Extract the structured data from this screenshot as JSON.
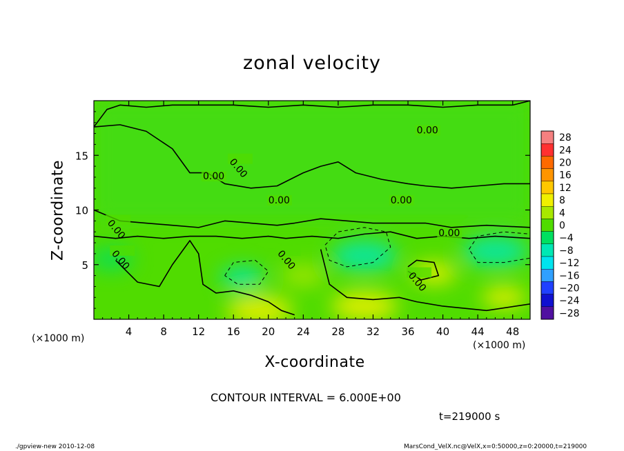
{
  "chart_data": {
    "type": "heatmap",
    "title": "zonal velocity",
    "xlabel": "X-coordinate",
    "ylabel": "Z-coordinate",
    "x_unit": "(×1000 m)",
    "xlim": [
      0,
      50
    ],
    "ylim": [
      0,
      20
    ],
    "x_ticks": [
      "4",
      "8",
      "12",
      "16",
      "20",
      "24",
      "28",
      "32",
      "36",
      "40",
      "44",
      "48"
    ],
    "x_tick_values": [
      4,
      8,
      12,
      16,
      20,
      24,
      28,
      32,
      36,
      40,
      44,
      48
    ],
    "y_ticks": [
      "5",
      "10",
      "15"
    ],
    "y_tick_values": [
      5,
      10,
      15
    ],
    "colorbar": {
      "labels": [
        "28",
        "24",
        "20",
        "16",
        "12",
        "8",
        "4",
        "0",
        "−4",
        "−8",
        "−12",
        "−16",
        "−20",
        "−24",
        "−28"
      ],
      "levels": [
        28,
        24,
        20,
        16,
        12,
        8,
        4,
        0,
        -4,
        -8,
        -12,
        -16,
        -20,
        -24,
        -28
      ],
      "colors": [
        "#f58080",
        "#ff3030",
        "#ff6a00",
        "#ff9500",
        "#ffc800",
        "#f0f000",
        "#a8e800",
        "#50dc00",
        "#00e060",
        "#00e8b4",
        "#00e4ee",
        "#30a0ff",
        "#2040ff",
        "#1010d0",
        "#5010a0"
      ]
    },
    "contour_labels": [
      "0.00",
      "0.00",
      "0.00",
      "0.00",
      "0.00",
      "0.00",
      "0.00",
      "0.00",
      "0.00",
      "0.00"
    ],
    "contour_interval": 6.0,
    "regions": [
      {
        "x": 31,
        "z": 5.8,
        "value": -9,
        "note": "negative region"
      },
      {
        "x": 46,
        "z": 6.2,
        "value": -8,
        "note": "negative region"
      },
      {
        "x": 17,
        "z": 3.8,
        "value": -7,
        "note": "negative region"
      },
      {
        "x": 2,
        "z": 5.5,
        "value": -3,
        "note": "weak negative"
      },
      {
        "x": 31,
        "z": 1.2,
        "value": 9,
        "note": "positive region"
      },
      {
        "x": 19,
        "z": 0.8,
        "value": 8,
        "note": "positive region"
      },
      {
        "x": 39,
        "z": 4.2,
        "value": 7,
        "note": "positive region"
      },
      {
        "x": 47,
        "z": 2.0,
        "value": 6,
        "note": "positive region"
      },
      {
        "x": 24,
        "z": 4.0,
        "value": 5,
        "note": "positive region"
      }
    ]
  },
  "labels": {
    "contour_interval": "CONTOUR INTERVAL = 6.000E+00",
    "time": "t=219000 s",
    "footer_left": "./gpview-new  2010-12-08",
    "footer_right": "MarsCond_VelX.nc@VelX,x=0:50000,z=0:20000,t=219000"
  }
}
